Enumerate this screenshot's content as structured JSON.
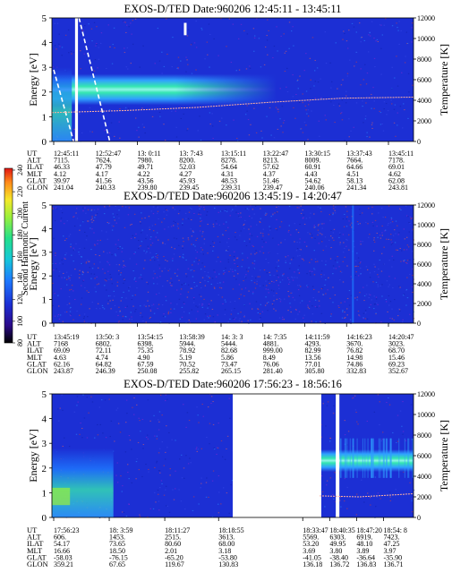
{
  "figure": {
    "instrument": "EXOS-D/TED",
    "left_axis_label": "Energy [eV]",
    "right_axis_label": "Temperature [K]",
    "colorbar_label": "Second Harmonic Current",
    "colorbar_ticks": [
      "80",
      "100",
      "120",
      "140",
      "160",
      "180",
      "200",
      "220",
      "240"
    ],
    "row_labels": [
      "UT",
      "ALT",
      "ILAT",
      "MLT",
      "GLAT",
      "GLON"
    ]
  },
  "colors": {
    "background_plasma": "#1c2fd4",
    "band_core": "#ffffff",
    "band_mid": "#35e6b0",
    "band_outer": "#2fa0ff",
    "temperature_trace": "#ffb0a0",
    "data_gap": "#ffffff",
    "colorbar": [
      "#000000",
      "#2b0a8a",
      "#1c2fd4",
      "#1e7bff",
      "#16c8d8",
      "#24e08a",
      "#9af03c",
      "#f5e82a",
      "#ff8a1a",
      "#e01414"
    ]
  },
  "chart_data": [
    {
      "type": "heatmap",
      "title": "EXOS-D/TED   Date:960206   12:45:11 - 13:45:11",
      "xlabel": "UT",
      "ylabel": "Energy [eV]",
      "ylim": [
        0,
        5
      ],
      "yticks": [
        "0",
        "1",
        "2",
        "3",
        "4",
        "5"
      ],
      "y2label": "Temperature [K]",
      "y2lim": [
        0,
        12000
      ],
      "y2ticks": [
        "0",
        "2000",
        "4000",
        "6000",
        "8000",
        "10000",
        "12000"
      ],
      "band": {
        "energy_center_ev": 2.1,
        "energy_halfwidth_ev": 0.35,
        "t_start": 0.0,
        "t_end": 0.62
      },
      "temperature_K": [
        {
          "t": 0.0,
          "v": 2800
        },
        {
          "t": 0.2,
          "v": 3000
        },
        {
          "t": 0.4,
          "v": 3300
        },
        {
          "t": 0.6,
          "v": 3800
        },
        {
          "t": 0.8,
          "v": 4200
        },
        {
          "t": 1.0,
          "v": 4300
        }
      ],
      "gaps": [
        [
          0.064,
          0.072
        ]
      ],
      "ephemeris": [
        [
          "12:45:11",
          "7115.",
          "46.33",
          "4.12",
          "39.97",
          "241.04"
        ],
        [
          "12:52:47",
          "7624.",
          "47.79",
          "4.17",
          "41.56",
          "240.33"
        ],
        [
          "13: 0:11",
          "7980.",
          "49.71",
          "4.22",
          "43.56",
          "239.80"
        ],
        [
          "13: 7:43",
          "8200.",
          "52.03",
          "4.27",
          "45.93",
          "239.45"
        ],
        [
          "13:15:11",
          "8278.",
          "54.64",
          "4.31",
          "48.53",
          "239.31"
        ],
        [
          "13:22:47",
          "8213.",
          "57.62",
          "4.37",
          "51.46",
          "239.47"
        ],
        [
          "13:30:15",
          "8009.",
          "60.91",
          "4.43",
          "54.62",
          "240.06"
        ],
        [
          "13:37:43",
          "7664.",
          "64.66",
          "4.51",
          "58.13",
          "241.34"
        ],
        [
          "13:45:11",
          "7178.",
          "69.01",
          "4.62",
          "62.08",
          "243.81"
        ]
      ]
    },
    {
      "type": "heatmap",
      "title": "EXOS-D/TED   Date:960206   13:45:19 - 14:20:47",
      "xlabel": "UT",
      "ylabel": "Energy [eV]",
      "ylim": [
        0,
        5
      ],
      "yticks": [
        "0",
        "1",
        "2",
        "3",
        "4",
        "5"
      ],
      "y2label": "Temperature [K]",
      "y2lim": [
        0,
        12000
      ],
      "y2ticks": [
        "0",
        "2000",
        "4000",
        "6000",
        "8000",
        "10000",
        "12000"
      ],
      "band": null,
      "temperature_K": [],
      "gaps": [],
      "ephemeris": [
        [
          "13:45:19",
          "7168",
          "69.09",
          "4.63",
          "62.16",
          "243.87"
        ],
        [
          "13:50: 3",
          "6802.",
          "72.11",
          "4.74",
          "64.82",
          "246.39"
        ],
        [
          "13:54:15",
          "6398.",
          "75.35",
          "4.90",
          "67.59",
          "250.08"
        ],
        [
          "13:58:39",
          "5944.",
          "78.92",
          "5.19",
          "70.52",
          "255.82"
        ],
        [
          "14: 3: 3",
          "5444.",
          "82.68",
          "5.86",
          "73.47",
          "265.15"
        ],
        [
          "14: 7:35",
          "4881.",
          "999.00",
          "8.49",
          "76.06",
          "281.40"
        ],
        [
          "14:11:59",
          "4293.",
          "82.99",
          "13.56",
          "77.01",
          "305.80"
        ],
        [
          "14:16:23",
          "3670.",
          "76.82",
          "14.98",
          "74.86",
          "332.83"
        ],
        [
          "14:20:47",
          "3023.",
          "68.70",
          "15.46",
          "69.23",
          "352.67"
        ]
      ]
    },
    {
      "type": "heatmap",
      "title": "EXOS-D/TED   Date:960206   17:56:23 - 18:56:16",
      "xlabel": "UT",
      "ylabel": "Energy [eV]",
      "ylim": [
        0,
        5
      ],
      "yticks": [
        "0",
        "1",
        "2",
        "3",
        "4",
        "5"
      ],
      "y2label": "Temperature [K]",
      "y2lim": [
        0,
        12000
      ],
      "y2ticks": [
        "0",
        "2000",
        "4000",
        "6000",
        "8000",
        "10000",
        "12000"
      ],
      "band": {
        "energy_center_ev": 2.3,
        "energy_halfwidth_ev": 0.25,
        "t_start": 0.74,
        "t_end": 1.0
      },
      "temperature_K": [
        {
          "t": 0.74,
          "v": 2100
        },
        {
          "t": 0.85,
          "v": 2000
        },
        {
          "t": 0.95,
          "v": 2200
        },
        {
          "t": 1.0,
          "v": 2300
        }
      ],
      "gaps": [
        [
          0.5,
          0.745
        ],
        [
          0.785,
          0.795
        ]
      ],
      "ephemeris": [
        [
          "17:56:23",
          "606.",
          "54.17",
          "16.66",
          "-58.03",
          "359.21"
        ],
        [
          "18: 3:59",
          "1453.",
          "73.65",
          "18.50",
          "-76.15",
          "67.65"
        ],
        [
          "18:11:27",
          "2515.",
          "80.60",
          "2.01",
          "-65.20",
          "119.67"
        ],
        [
          "18:18:55",
          "3613.",
          "68.00",
          "3.18",
          "-53.80",
          "130.83"
        ],
        [
          "18:33:47",
          "5569.",
          "53.20",
          "3.69",
          "-41.05",
          "136.18"
        ],
        [
          "18:40:35",
          "6303.",
          "49.95",
          "3.80",
          "-38.40",
          "136.72"
        ],
        [
          "18:47:20",
          "6919.",
          "48.10",
          "3.89",
          "-36.64",
          "136.83"
        ],
        [
          "18:54: 8",
          "7423.",
          "47.25",
          "3.97",
          "-35.90",
          "136.71"
        ]
      ]
    }
  ]
}
